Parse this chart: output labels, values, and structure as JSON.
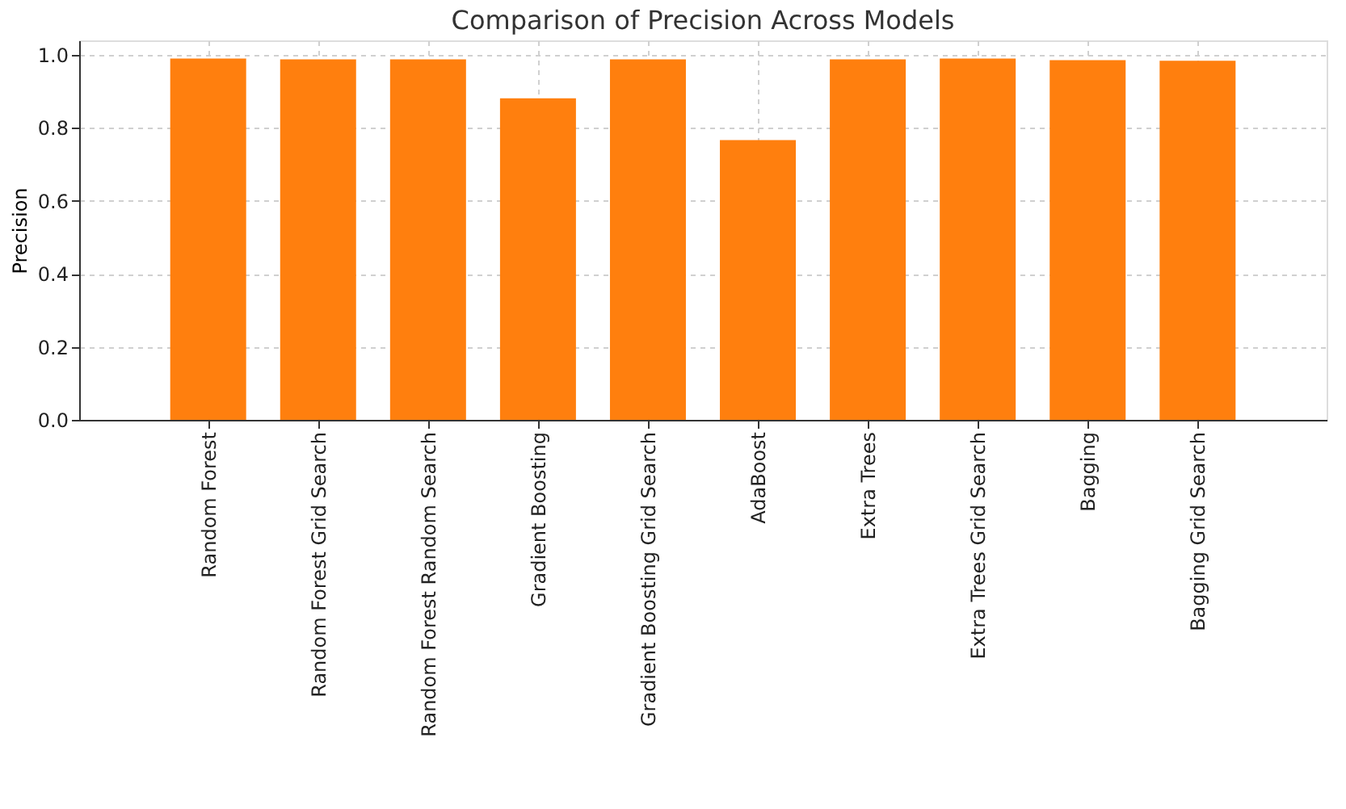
{
  "chart_data": {
    "type": "bar",
    "title": "Comparison of Precision Across Models",
    "ylabel": "Precision",
    "categories": [
      "Random Forest",
      "Random Forest Grid Search",
      "Random Forest Random Search",
      "Gradient Boosting",
      "Gradient Boosting Grid Search",
      "AdaBoost",
      "Extra Trees",
      "Extra Trees Grid Search",
      "Bagging",
      "Bagging Grid Search"
    ],
    "values": [
      0.99,
      0.988,
      0.988,
      0.881,
      0.988,
      0.767,
      0.988,
      0.99,
      0.986,
      0.984
    ],
    "color": "#ff7f0e",
    "ylim": [
      0,
      1.04
    ],
    "yticks": [
      {
        "value": 0,
        "label": "0.0"
      },
      0.2,
      0.4,
      0.6,
      0.8,
      {
        "value": 1,
        "label": "1.0"
      }
    ],
    "grid": true
  }
}
